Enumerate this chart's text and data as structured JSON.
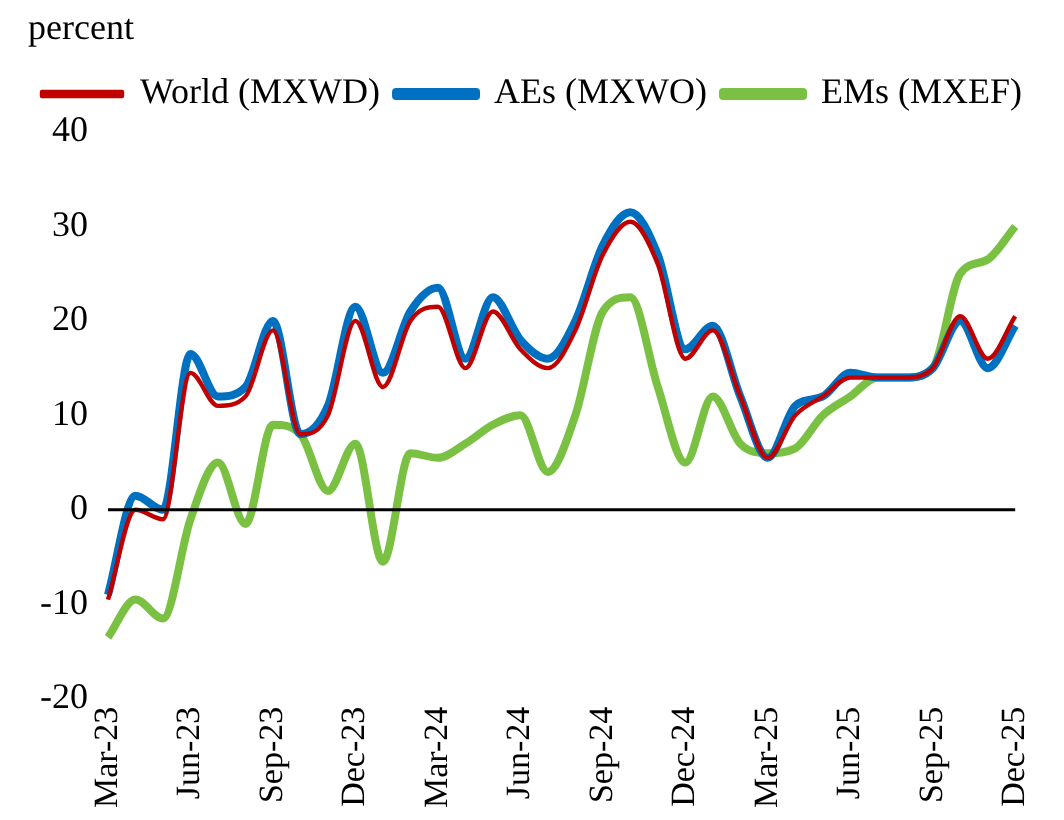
{
  "chart_data": {
    "type": "line",
    "ylabel": "percent",
    "categories": [
      "Mar-23",
      null,
      null,
      "Jun-23",
      null,
      null,
      "Sep-23",
      null,
      null,
      "Dec-23",
      null,
      null,
      "Mar-24",
      null,
      null,
      "Jun-24",
      null,
      null,
      "Sep-24",
      null,
      null,
      "Dec-24",
      null,
      null,
      "Mar-25",
      null,
      null,
      "Jun-25",
      null,
      null,
      "Sep-25",
      null,
      null,
      "Dec-25"
    ],
    "series": [
      {
        "name": "World (MXWD)",
        "color": "#c00000",
        "values": [
          -9.5,
          0,
          -1,
          14.5,
          11,
          12,
          19,
          8,
          10,
          20,
          13,
          20,
          21.5,
          15,
          21,
          17,
          15,
          19,
          27,
          30.5,
          26,
          16,
          19,
          12,
          5.5,
          10,
          12,
          14,
          14,
          14,
          15,
          20.5,
          16,
          20.5
        ]
      },
      {
        "name": "AEs (MXWO)",
        "color": "#0070c0",
        "values": [
          -9,
          1.5,
          0,
          16.5,
          12,
          13,
          20,
          8,
          11,
          21.5,
          14.5,
          21,
          23.5,
          16,
          22.5,
          18,
          16,
          20,
          28,
          31.5,
          27,
          17,
          19.5,
          12,
          5.5,
          11,
          12,
          14.5,
          14,
          14,
          15,
          20,
          15,
          19.5
        ]
      },
      {
        "name": "EMs (MXEF)",
        "color": "#7ac143",
        "values": [
          -13.5,
          -9.5,
          -11.5,
          -1,
          5,
          -1.5,
          9,
          8,
          2,
          7,
          -5.5,
          6,
          5.5,
          7,
          9,
          10,
          4,
          10,
          21,
          22.5,
          13,
          5,
          12,
          7,
          6,
          6.5,
          10,
          12,
          14,
          14,
          15,
          25,
          26.5,
          30
        ]
      }
    ],
    "ylim": [
      -20,
      40
    ],
    "yticks": [
      -20,
      -10,
      0,
      10,
      20,
      30,
      40
    ],
    "grid": false,
    "ref_lines": [
      {
        "axis": "y",
        "value": 0,
        "color": "#000000"
      }
    ],
    "legend": "top",
    "marker": "none",
    "line_style": "solid"
  }
}
